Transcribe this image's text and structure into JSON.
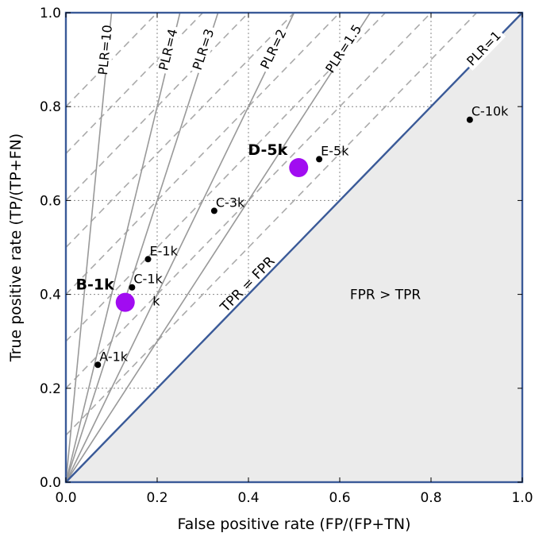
{
  "chart_data": {
    "type": "scatter",
    "xlabel": "False positive rate (FP/(FP+TN)",
    "ylabel": "True positive rate (TP/(TP+FN)",
    "xlim": [
      0.0,
      1.0
    ],
    "ylim": [
      0.0,
      1.0
    ],
    "x_ticks": [
      "0.0",
      "0.2",
      "0.4",
      "0.6",
      "0.8",
      "1.0"
    ],
    "y_ticks": [
      "0.0",
      "0.2",
      "0.4",
      "0.6",
      "0.8",
      "1.0"
    ],
    "grid": true,
    "diagonal_label": "TPR = FPR",
    "region_label": "FPR > TPR",
    "plr_lines": [
      {
        "label": "PLR=10",
        "slope": 10
      },
      {
        "label": "PLR=4",
        "slope": 4
      },
      {
        "label": "PLR=3",
        "slope": 3
      },
      {
        "label": "PLR=2",
        "slope": 2
      },
      {
        "label": "PLR=1.5",
        "slope": 1.5
      },
      {
        "label": "PLR=1",
        "slope": 1
      }
    ],
    "dashed_offsets": [
      0.1,
      0.2,
      0.3,
      0.4,
      0.5,
      0.6,
      0.7,
      0.8
    ],
    "points": [
      {
        "label": "A-1k",
        "x": 0.07,
        "y": 0.25
      },
      {
        "label": "C-1k",
        "x": 0.145,
        "y": 0.415
      },
      {
        "label": "E-1k",
        "x": 0.18,
        "y": 0.475
      },
      {
        "label": "C-3k",
        "x": 0.325,
        "y": 0.578
      },
      {
        "label": "E-5k",
        "x": 0.555,
        "y": 0.688
      },
      {
        "label": "C-10k",
        "x": 0.885,
        "y": 0.772
      }
    ],
    "stray_label": "k",
    "highlights": [
      {
        "label": "B-1k",
        "x": 0.13,
        "y": 0.383
      },
      {
        "label": "D-5k",
        "x": 0.51,
        "y": 0.67
      }
    ],
    "colors": {
      "frame": "#3a5a98",
      "diagonal": "#3a5a98",
      "plr_lines": "#999999",
      "dashed": "#aaaaaa",
      "grid": "#888888",
      "region_fill": "#ebebeb",
      "point": "#000000",
      "highlight": "#a10cf1"
    }
  }
}
